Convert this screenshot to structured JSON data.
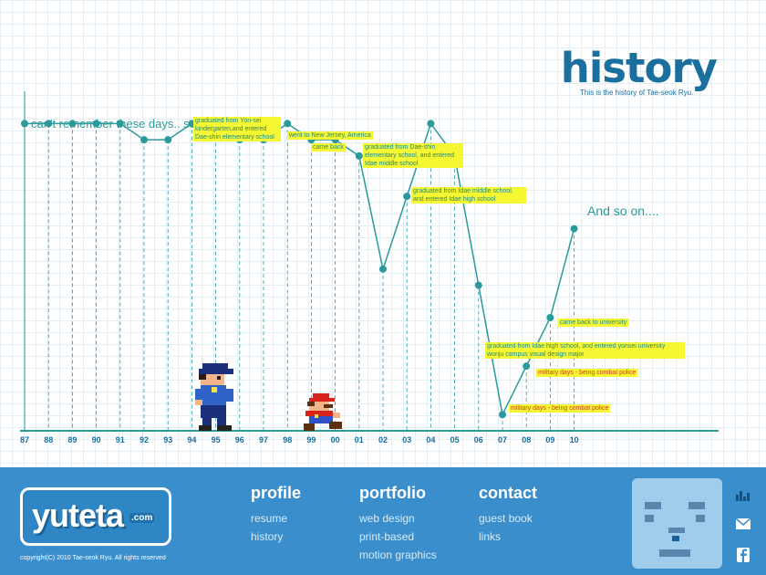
{
  "header": {
    "title": "history",
    "subtitle": "This is the history of Tae-seok Ryu."
  },
  "chart_data": {
    "type": "line",
    "categories": [
      "87",
      "88",
      "89",
      "90",
      "91",
      "92",
      "93",
      "94",
      "95",
      "96",
      "97",
      "98",
      "99",
      "00",
      "01",
      "02",
      "03",
      "04",
      "05",
      "06",
      "07",
      "08",
      "09",
      "10"
    ],
    "values": [
      12,
      12,
      12,
      12,
      12,
      11,
      11,
      12,
      12,
      11,
      11,
      12,
      11,
      11,
      10,
      3,
      7.5,
      12,
      10,
      2,
      -6,
      -3,
      0,
      5.5
    ],
    "ylim": [
      -7,
      14
    ],
    "grid": true,
    "annotations": [
      {
        "text": "can't remember these days.. sorry",
        "style": "plain"
      },
      {
        "text": "graduated from Yon-sei kindergarten,and entered Dae-shin elementary school",
        "style": "highlight"
      },
      {
        "text": "went to New Jersey, America",
        "style": "highlight"
      },
      {
        "text": "came back",
        "style": "highlight"
      },
      {
        "text": "graduated from Dae-shin elementary school, and entered Idae middle school",
        "style": "highlight"
      },
      {
        "text": "graduated from Idae middle school, and entered Idae high school",
        "style": "highlight"
      },
      {
        "text": "And so on....",
        "style": "plain"
      },
      {
        "text": "came back to university",
        "style": "highlight"
      },
      {
        "text": "graduated from Idae high school, and entered yonsei university wonju campus visual design major",
        "style": "highlight"
      },
      {
        "text": "military days - being combat police",
        "style": "highlight-red"
      },
      {
        "text": "military days - being combat police",
        "style": "highlight-red"
      }
    ]
  },
  "colors": {
    "line": "#2a9a9a",
    "highlight": "#f6f733",
    "footer": "#3b8ecc",
    "title": "#1a6f9e"
  },
  "footer": {
    "logo_text": "yuteta",
    "logo_domain": ".com",
    "copyright": "copyright(C) 2010 Tae-seok Ryu. All rights reserved",
    "nav": [
      {
        "heading": "profile",
        "links": [
          "resume",
          "history"
        ]
      },
      {
        "heading": "portfolio",
        "links": [
          "web design",
          "print-based",
          "motion graphics"
        ]
      },
      {
        "heading": "contact",
        "links": [
          "guest book",
          "links"
        ]
      }
    ],
    "social_icons": [
      "equalizer-icon",
      "mail-icon",
      "facebook-icon"
    ]
  }
}
